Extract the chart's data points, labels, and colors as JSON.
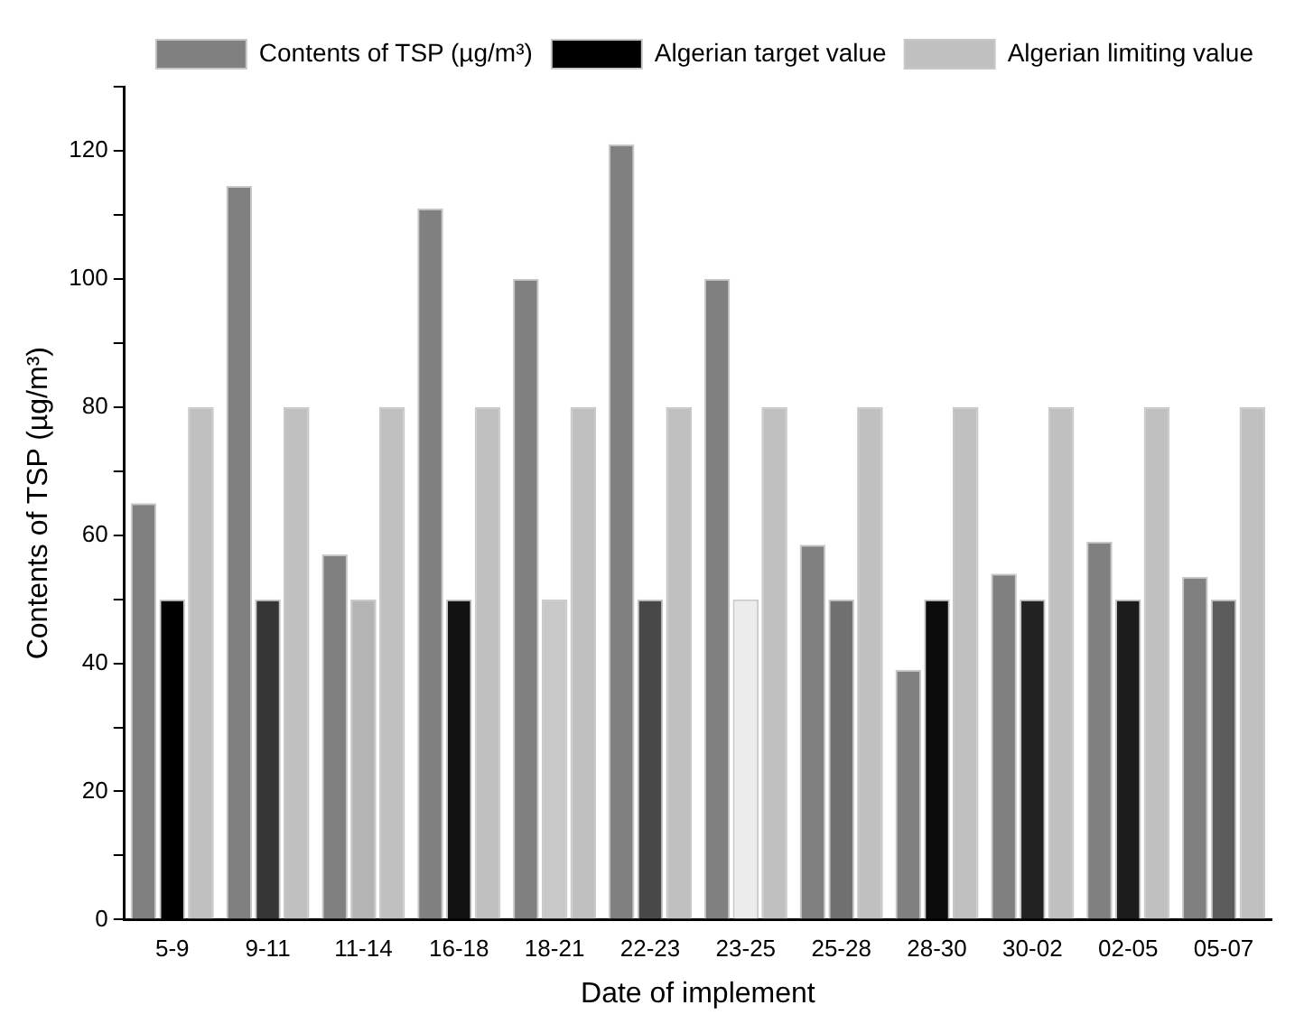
{
  "chart_data": {
    "type": "bar",
    "xlabel": "Date of implement",
    "ylabel": "Contents of TSP (µg/m³)",
    "categories": [
      "5-9",
      "9-11",
      "11-14",
      "16-18",
      "18-21",
      "22-23",
      "23-25",
      "25-28",
      "28-30",
      "30-02",
      "02-05",
      "05-07"
    ],
    "series": [
      {
        "name": "Contents of TSP (µg/m³)",
        "color": "#808080",
        "values": [
          65,
          114.5,
          57,
          111,
          100,
          121,
          100,
          58.5,
          39,
          54,
          59,
          53.5
        ]
      },
      {
        "name": "Algerian target value",
        "color": "#000000",
        "colors": [
          "#000000",
          "#363636",
          "#b4b4b4",
          "#121212",
          "#c8c8c8",
          "#484848",
          "#ececec",
          "#707070",
          "#0c0c0c",
          "#222222",
          "#1c1c1c",
          "#5c5c5c"
        ],
        "values": [
          50,
          50,
          50,
          50,
          50,
          50,
          50,
          50,
          50,
          50,
          50,
          50
        ]
      },
      {
        "name": "Algerian limiting value",
        "color": "#c0c0c0",
        "values": [
          80,
          80,
          80,
          80,
          80,
          80,
          80,
          80,
          80,
          80,
          80,
          80
        ]
      }
    ],
    "ylim": [
      0,
      130
    ],
    "yticks": [
      0,
      {
        "value": 10,
        "label": null
      },
      20,
      {
        "value": 30,
        "label": null
      },
      40,
      {
        "value": 50,
        "label": null
      },
      60,
      {
        "value": 70,
        "label": null
      },
      80,
      {
        "value": 90,
        "label": null
      },
      100,
      {
        "value": 110,
        "label": null
      },
      120,
      {
        "value": 130,
        "label": null
      }
    ],
    "grid": false,
    "legend": "top right"
  }
}
